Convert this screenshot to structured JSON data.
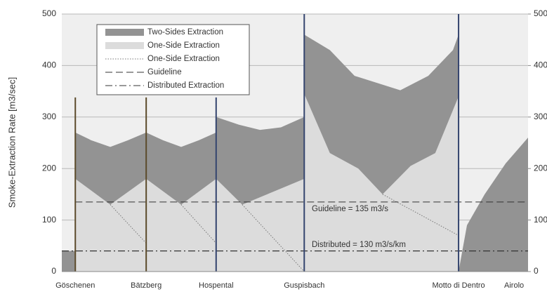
{
  "chart_data": {
    "type": "area",
    "y_label": "Smoke-Extraction Rate [m3/sec]",
    "ylim": [
      0,
      500
    ],
    "yticks": [
      0,
      100,
      200,
      300,
      400,
      500
    ],
    "y2lim": [
      0,
      500
    ],
    "y2ticks": [
      0,
      100,
      200,
      300,
      400,
      500
    ],
    "xlim": [
      0,
      100
    ],
    "grid": true,
    "legend": "upper left",
    "categories": [
      "Göschenen",
      "Bätzberg",
      "Hospental",
      "Guspisbach",
      "Motto di Dentro",
      "Airolo"
    ],
    "category_x": [
      2.9,
      18.1,
      33.1,
      52.0,
      85.1,
      97.0
    ],
    "divider_tops": [
      338,
      338,
      338,
      500,
      500,
      null
    ],
    "divider_colors": [
      "#5b4a2a",
      "#5b4a2a",
      "#34446e",
      "#34446e",
      "#34446e",
      null
    ],
    "series": [
      {
        "name": "Two-Sides Extraction",
        "kind": "area",
        "color": "#939393",
        "x": [
          0,
          2.9,
          2.9,
          2.9,
          6.3,
          10.4,
          14.2,
          18.1,
          21.7,
          25.6,
          29.4,
          33.1,
          33.1,
          38.0,
          42.5,
          47.0,
          52.0,
          52.0,
          57.5,
          62.8,
          72.6,
          78.6,
          83.9,
          85.1,
          85.1,
          85.1,
          86.9,
          90.7,
          95.2,
          100
        ],
        "values": [
          40,
          40,
          null,
          270,
          255,
          242,
          255,
          270,
          255,
          242,
          255,
          270,
          300,
          285,
          275,
          280,
          300,
          460,
          430,
          380,
          352,
          380,
          430,
          460,
          null,
          0,
          90,
          150,
          210,
          260
        ]
      },
      {
        "name": "One-Side Extraction",
        "kind": "area",
        "color": "#dcdcdc",
        "x": [
          2.9,
          10.4,
          18.1,
          25.6,
          33.1,
          38.7,
          52.0,
          52.0,
          57.5,
          63.6,
          68.8,
          74.8,
          80.1,
          85.1
        ],
        "values": [
          180,
          130,
          180,
          130,
          180,
          130,
          180,
          345,
          230,
          200,
          150,
          205,
          230,
          340
        ]
      },
      {
        "name": "One-Side Extraction",
        "kind": "line",
        "color": "#777777",
        "dash": "1.5,2",
        "x": [
          10.4,
          18.1,
          18.1,
          25.6,
          33.1,
          33.1,
          38.7,
          52.0,
          52.0,
          68.8,
          85.1
        ],
        "values": [
          130,
          55,
          null,
          130,
          55,
          null,
          130,
          0,
          null,
          150,
          70
        ]
      },
      {
        "name": "Guideline",
        "kind": "line",
        "color": "#333333",
        "dash": "10,5",
        "x": [
          2.9,
          100
        ],
        "values": [
          135,
          135
        ]
      },
      {
        "name": "Distributed Extraction",
        "kind": "line",
        "color": "#333333",
        "dash": "10,4,2,4",
        "x": [
          0,
          100
        ],
        "values": [
          40,
          40
        ]
      }
    ],
    "annotations": [
      "Guideline = 135 m3/s",
      "Distributed = 130 m3/s/km"
    ]
  }
}
